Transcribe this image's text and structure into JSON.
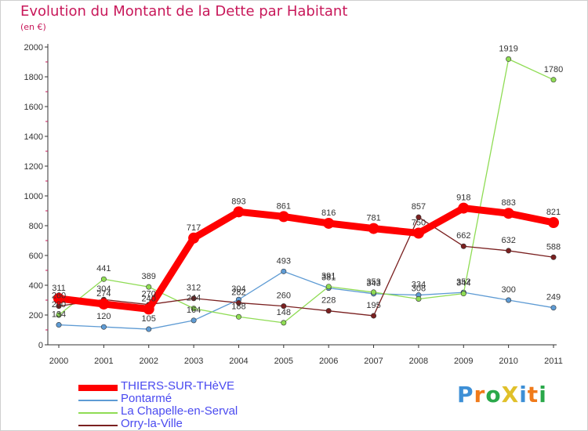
{
  "title": "Evolution du Montant de la Dette par Habitant",
  "subtitle": "(en €)",
  "logo": "ProXiti",
  "chart_data": {
    "type": "line",
    "title": "Evolution du Montant de la Dette par Habitant",
    "subtitle": "(en €)",
    "xlabel": "",
    "ylabel": "",
    "x": [
      "2000",
      "2001",
      "2002",
      "2003",
      "2004",
      "2005",
      "2006",
      "2007",
      "2008",
      "2009",
      "2010",
      "2011"
    ],
    "ylim": [
      0,
      2000
    ],
    "yticks": [
      "0",
      "200",
      "400",
      "600",
      "800",
      "1000",
      "1200",
      "1400",
      "1600",
      "1800",
      "2000"
    ],
    "grid": false,
    "legend_position": "bottom-left",
    "series": [
      {
        "name": "THIERS-SUR-THèVE",
        "color": "#ff0000",
        "values": [
          311,
          274,
          240,
          717,
          893,
          861,
          816,
          781,
          750,
          918,
          883,
          821
        ]
      },
      {
        "name": "Pontarmé",
        "color": "#5e9bd4",
        "values": [
          134,
          120,
          105,
          164,
          304,
          493,
          381,
          343,
          334,
          352,
          300,
          249
        ]
      },
      {
        "name": "La Chapelle-en-Serval",
        "color": "#8fdc54",
        "values": [
          200,
          441,
          389,
          244,
          188,
          148,
          391,
          353,
          308,
          344,
          1919,
          1780
        ]
      },
      {
        "name": "Orry-la-Ville",
        "color": "#7a2020",
        "values": [
          260,
          304,
          270,
          312,
          282,
          260,
          228,
          195,
          857,
          662,
          632,
          588
        ]
      }
    ]
  }
}
